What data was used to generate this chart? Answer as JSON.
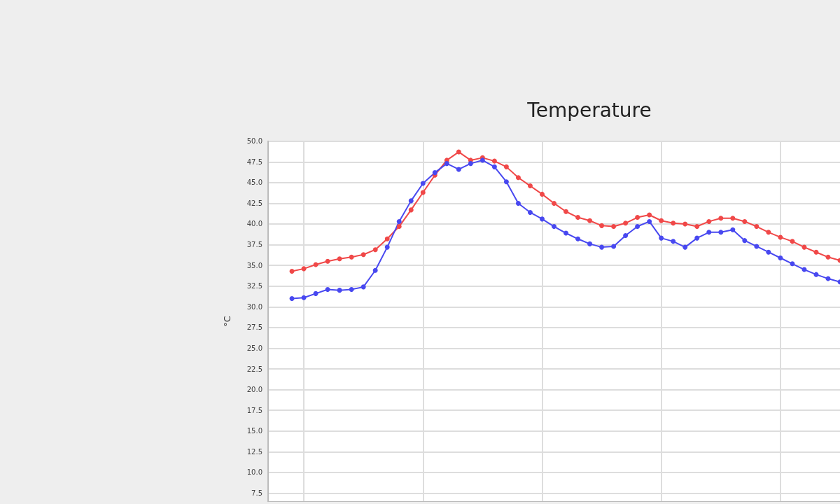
{
  "chart_data": {
    "type": "line",
    "title": "Temperature",
    "ylabel": "°C",
    "categories": [
      null,
      null,
      null,
      null,
      null,
      null,
      null,
      null,
      null,
      null,
      null,
      null,
      null,
      null,
      null,
      null,
      null,
      null,
      null,
      null,
      null,
      null,
      null,
      null,
      null,
      null,
      null,
      null,
      null,
      null,
      null,
      null,
      null,
      null,
      null,
      null,
      null,
      null,
      null,
      null,
      null,
      null,
      null,
      null,
      null,
      null,
      null,
      null,
      null
    ],
    "series": [
      {
        "color": "#f04848",
        "values": [
          null,
          null,
          34.3,
          34.6,
          35.1,
          35.5,
          35.8,
          36.0,
          36.3,
          36.9,
          38.2,
          39.7,
          41.7,
          43.8,
          45.9,
          47.7,
          48.7,
          47.7,
          48.0,
          47.6,
          46.9,
          45.6,
          44.6,
          43.6,
          42.5,
          41.5,
          40.8,
          40.4,
          39.8,
          39.7,
          40.1,
          40.8,
          41.1,
          40.4,
          40.1,
          40.0,
          39.7,
          40.3,
          40.7,
          40.7,
          40.3,
          39.7,
          39.0,
          38.4,
          37.9,
          37.2,
          36.6,
          36.0,
          35.6
        ]
      },
      {
        "color": "#4848f0",
        "values": [
          null,
          null,
          31.0,
          31.1,
          31.6,
          32.1,
          32.0,
          32.1,
          32.4,
          34.4,
          37.2,
          40.3,
          42.8,
          44.9,
          46.2,
          47.3,
          46.6,
          47.3,
          47.7,
          46.9,
          45.1,
          42.5,
          41.4,
          40.6,
          39.7,
          38.9,
          38.2,
          37.6,
          37.2,
          37.3,
          38.6,
          39.7,
          40.3,
          38.3,
          37.9,
          37.2,
          38.3,
          39.0,
          39.0,
          39.3,
          38.0,
          37.3,
          36.6,
          35.9,
          35.2,
          34.5,
          33.9,
          33.4,
          33.0
        ]
      }
    ],
    "ylim": [
      6.5,
      50
    ],
    "yticks": [
      {
        "value": 7.5,
        "label": "7.5"
      },
      {
        "value": 10,
        "label": "10.0"
      },
      {
        "value": 12.5,
        "label": "12.5"
      },
      {
        "value": 15,
        "label": "15.0"
      },
      {
        "value": 17.5,
        "label": "17.5"
      },
      {
        "value": 20,
        "label": "20.0"
      },
      {
        "value": 22.5,
        "label": "22.5"
      },
      {
        "value": 25,
        "label": "25.0"
      },
      {
        "value": 27.5,
        "label": "27.5"
      },
      {
        "value": 30,
        "label": "30.0"
      },
      {
        "value": 32.5,
        "label": "32.5"
      },
      {
        "value": 35,
        "label": "35.0"
      },
      {
        "value": 37.5,
        "label": "37.5"
      },
      {
        "value": 40,
        "label": "40.0"
      },
      {
        "value": 42.5,
        "label": "42.5"
      },
      {
        "value": 45,
        "label": "45.0"
      },
      {
        "value": 47.5,
        "label": "47.5"
      },
      {
        "value": 50,
        "label": "50.0"
      }
    ],
    "grid": true,
    "tick_labels": "y",
    "marker": "circle",
    "line_style": "solid"
  }
}
